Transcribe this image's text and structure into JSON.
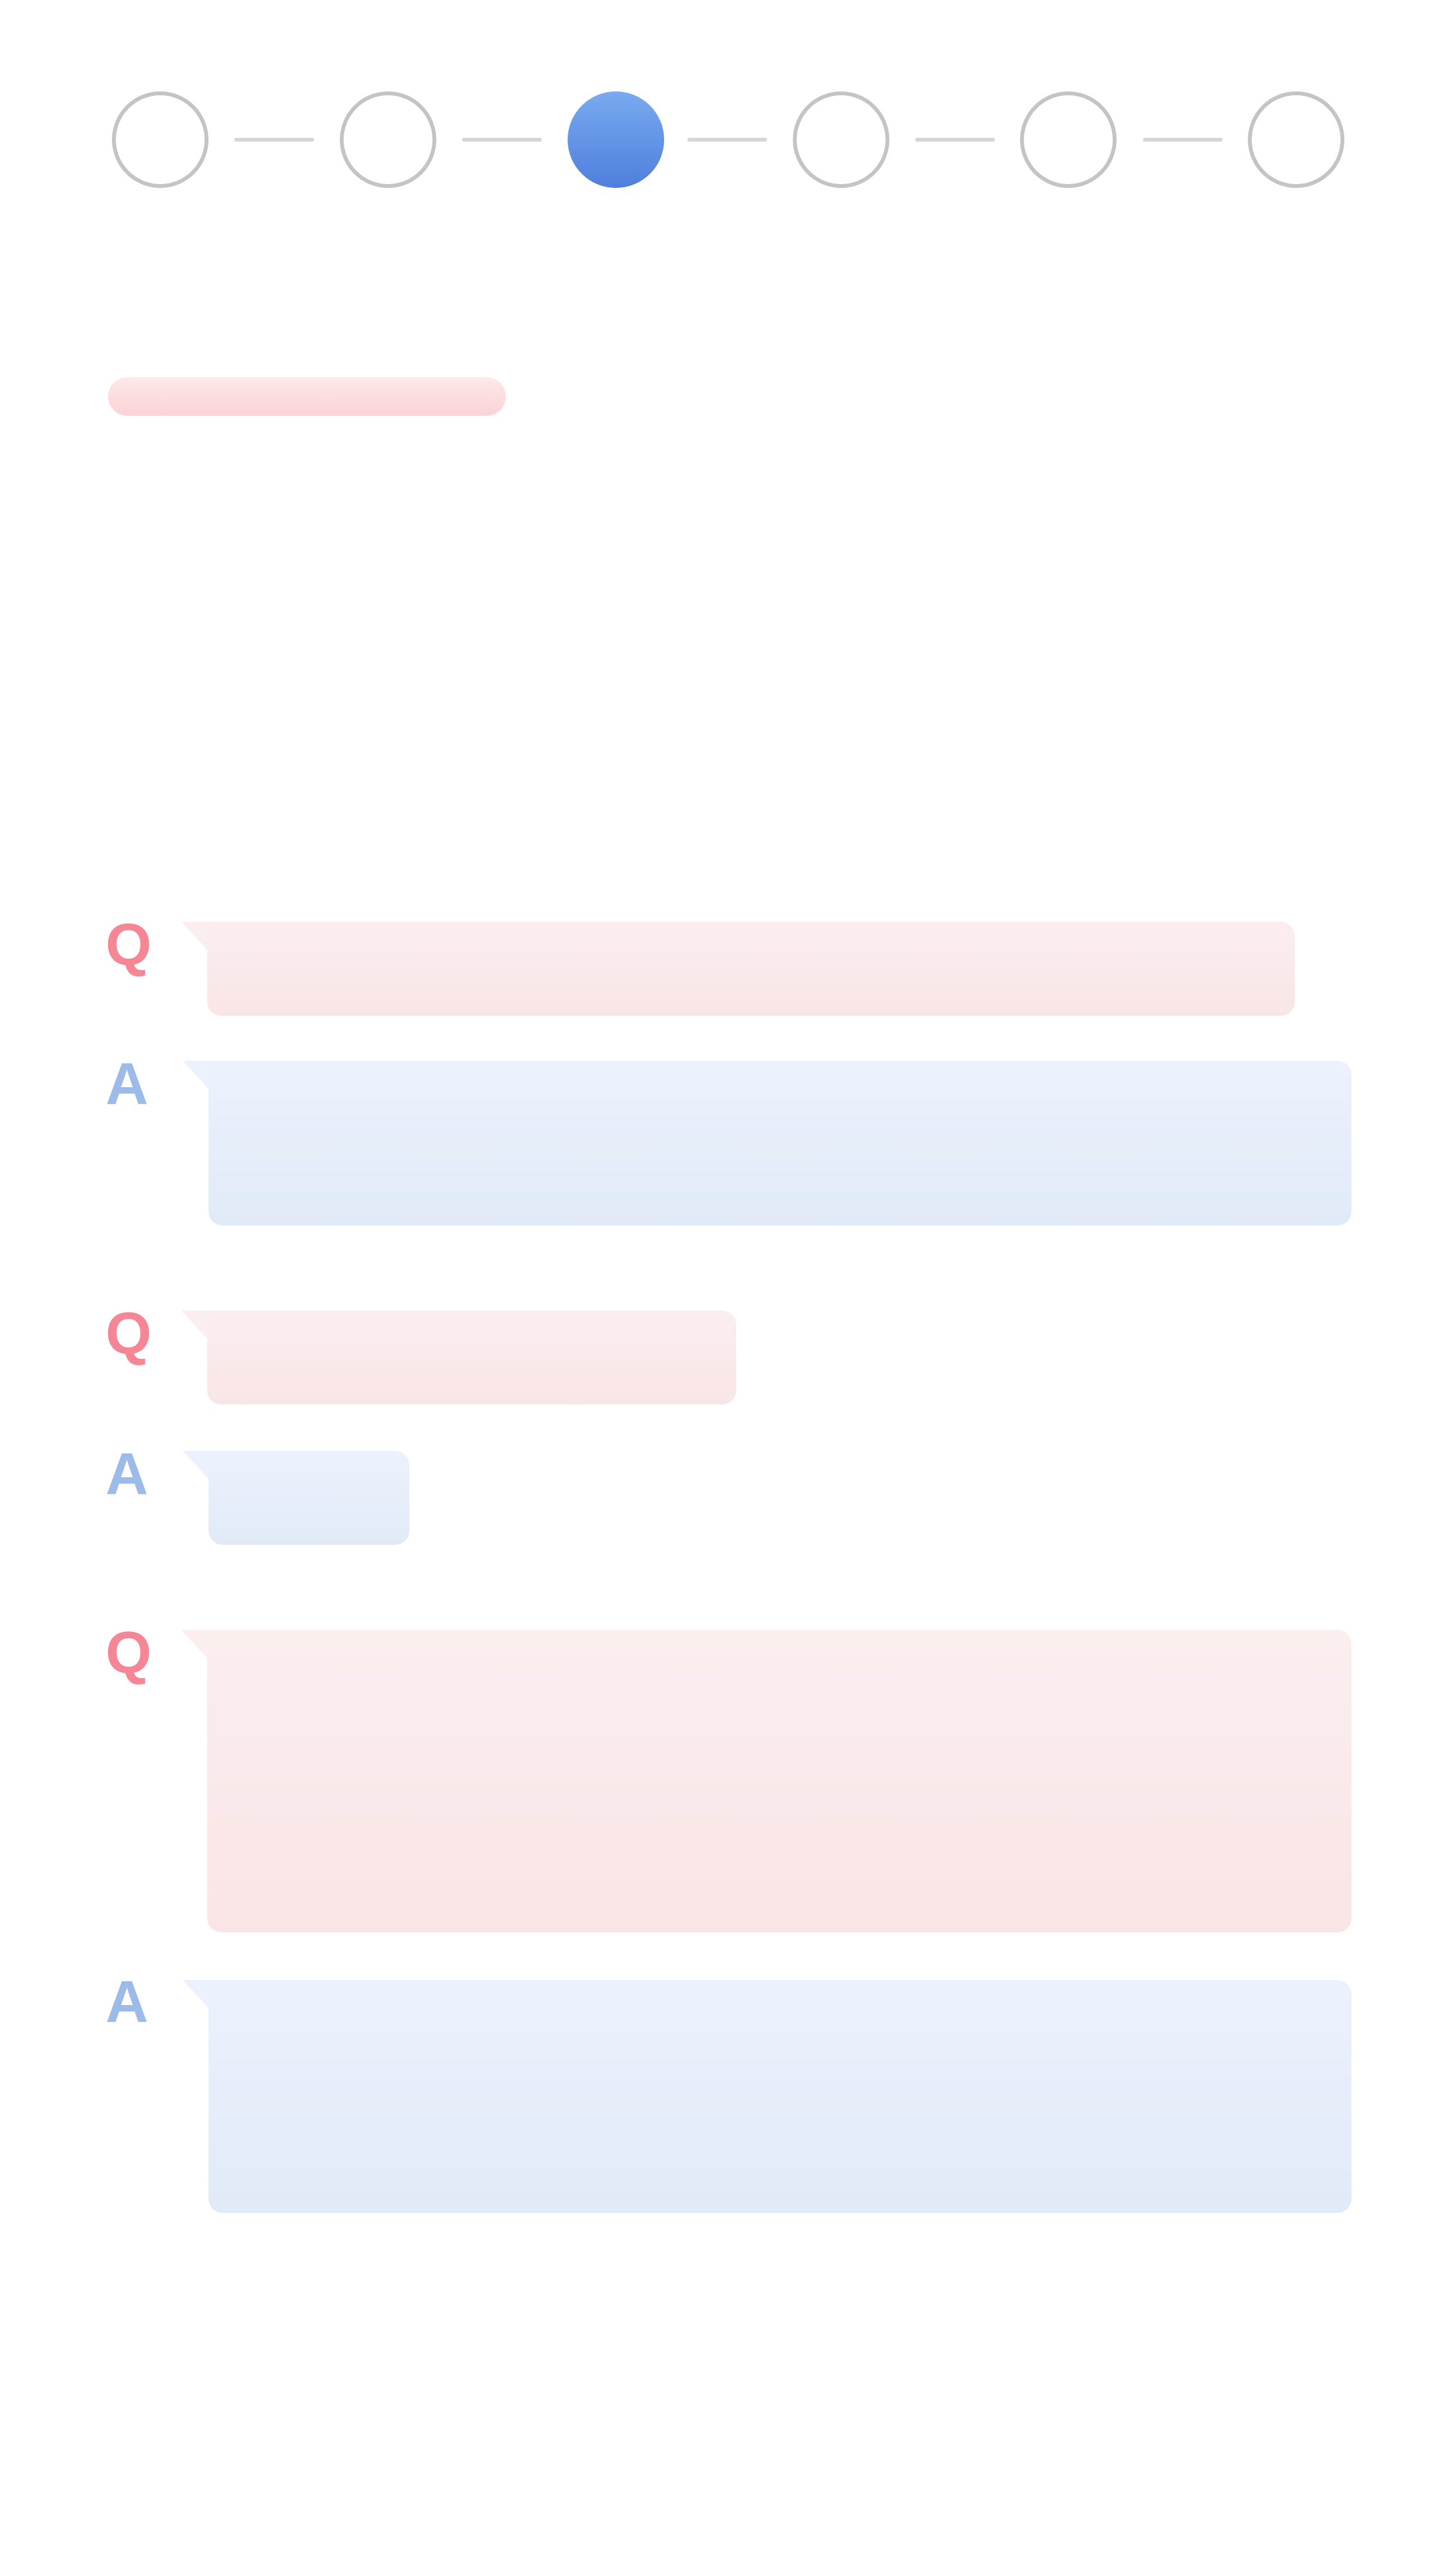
{
  "stepper": {
    "total_steps": 6,
    "current_step": 3,
    "colors": {
      "inactive": "#c4c4c4",
      "active": "#5b8ae0",
      "connector": "#d6d6d6"
    }
  },
  "title": {
    "text": ""
  },
  "qa": {
    "items": [
      {
        "type": "Q",
        "text": ""
      },
      {
        "type": "A",
        "text": ""
      },
      {
        "type": "Q",
        "text": ""
      },
      {
        "type": "A",
        "text": ""
      },
      {
        "type": "Q",
        "text": ""
      },
      {
        "type": "A",
        "text": ""
      }
    ],
    "colors": {
      "question_letter": "#f58795",
      "answer_letter": "#9dbbe8",
      "question_bubble": "#f9e8e9",
      "answer_bubble": "#e6eefa"
    }
  }
}
